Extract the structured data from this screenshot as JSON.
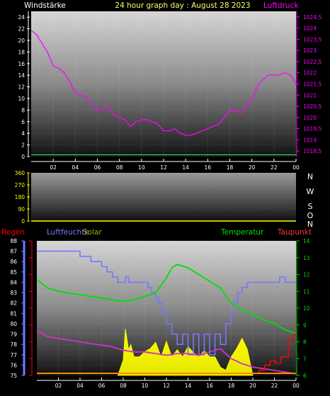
{
  "header": {
    "left": "Windstärke",
    "center": "24 hour graph day : August 28 2023",
    "right": "Luftdruck"
  },
  "compass": [
    "N",
    "W",
    "S",
    "O",
    "N"
  ],
  "labels": {
    "regen": "Regen",
    "luftfeuchte": "Luftfeuchte",
    "solar": "Solar",
    "temperatur": "Temperatur",
    "taupunkt": "Taupunkt"
  },
  "colors": {
    "wind": "#33cc66",
    "pressure": "#ff00ff",
    "humidity": "#7777ff",
    "solar": "#ffff00",
    "temperature": "#00e000",
    "dewpoint": "#cc33cc",
    "rain": "#ff0000",
    "tickLeft": "#ffffff",
    "tickRight": "#ff00ff"
  },
  "chart_data": [
    {
      "type": "line",
      "title": "24 hour graph day : August 28 2023",
      "x_ticks": [
        "02",
        "04",
        "06",
        "08",
        "10",
        "12",
        "14",
        "16",
        "18",
        "20",
        "22",
        "00"
      ],
      "y_left_label": "Windstärke",
      "y_left_ticks": [
        0,
        2,
        4,
        6,
        8,
        10,
        12,
        14,
        16,
        18,
        20,
        22,
        24
      ],
      "y_left_range": [
        0,
        25
      ],
      "y_right_label": "Luftdruck",
      "y_right_ticks": [
        "1018,5",
        "1019",
        "1019,5",
        "1020",
        "1020,5",
        "1021",
        "1021,5",
        "1022",
        "1022,5",
        "1023",
        "1023,5",
        "1024",
        "1024,5"
      ],
      "y_right_range": [
        1018.25,
        1024.75
      ],
      "series": [
        {
          "name": "Windstärke",
          "axis": "left",
          "x": [
            0,
            24
          ],
          "values": [
            0.3,
            0.3
          ]
        },
        {
          "name": "Luftdruck",
          "axis": "right",
          "x": [
            0,
            0.5,
            1,
            1.5,
            2,
            2.5,
            3,
            3.5,
            4,
            4.5,
            5,
            5.5,
            6,
            6.5,
            7,
            7.5,
            8,
            8.5,
            9,
            9.5,
            10,
            10.5,
            11,
            11.5,
            12,
            12.5,
            13,
            13.5,
            14,
            14.5,
            15,
            15.5,
            16,
            16.5,
            17,
            17.5,
            18,
            18.5,
            19,
            19.5,
            20,
            20.5,
            21,
            21.5,
            22,
            22.5,
            23,
            23.5,
            24
          ],
          "values": [
            1023.9,
            1023.7,
            1023.3,
            1022.9,
            1022.3,
            1022.2,
            1022.0,
            1021.6,
            1021.1,
            1021.0,
            1020.9,
            1020.6,
            1020.3,
            1020.4,
            1020.5,
            1020.1,
            1020.0,
            1019.9,
            1019.6,
            1019.8,
            1019.9,
            1019.9,
            1019.8,
            1019.7,
            1019.4,
            1019.4,
            1019.5,
            1019.3,
            1019.2,
            1019.2,
            1019.3,
            1019.4,
            1019.5,
            1019.6,
            1019.7,
            1020.0,
            1020.3,
            1020.3,
            1020.2,
            1020.5,
            1020.8,
            1021.4,
            1021.7,
            1021.9,
            1021.9,
            1021.9,
            1022.0,
            1021.9,
            1021.5
          ]
        }
      ]
    },
    {
      "type": "line",
      "y_left_label": "",
      "y_left_ticks": [
        0,
        90,
        180,
        270,
        360
      ],
      "y_left_range": [
        0,
        360
      ],
      "series": [
        {
          "name": "",
          "x": [
            0,
            24
          ],
          "values": [
            0,
            0
          ]
        }
      ]
    },
    {
      "type": "line",
      "x_ticks": [
        "02",
        "04",
        "06",
        "08",
        "10",
        "12",
        "14",
        "16",
        "18",
        "20",
        "22",
        "00"
      ],
      "y_left_ticks": [
        75,
        76,
        77,
        78,
        79,
        80,
        81,
        82,
        83,
        84,
        85,
        86,
        87,
        88
      ],
      "y_left_range": [
        75,
        88
      ],
      "y_right_ticks": [
        6,
        7,
        8,
        9,
        10,
        11,
        12,
        13,
        14
      ],
      "y_right_range": [
        6,
        14
      ],
      "series": [
        {
          "name": "Luftfeuchte",
          "axis": "left",
          "x": [
            0,
            3,
            4,
            5,
            6,
            6.5,
            7,
            7.5,
            8,
            8.2,
            8.5,
            9,
            10,
            10.3,
            10.6,
            11,
            11.3,
            11.6,
            12,
            12.5,
            13,
            13.5,
            14,
            14.5,
            15,
            15.5,
            16,
            16.5,
            17,
            17.5,
            18,
            18.3,
            18.6,
            19,
            19.5,
            20,
            20.5,
            21,
            21.5,
            22,
            22.5,
            23,
            23.5,
            24
          ],
          "values": [
            87,
            87,
            86.5,
            86,
            85.5,
            85,
            84.5,
            84,
            84,
            84.5,
            84,
            84,
            84,
            83.5,
            83,
            82.5,
            82,
            81,
            80,
            79,
            78,
            79,
            77,
            79,
            77,
            79,
            77,
            79,
            78,
            80,
            81,
            82,
            83,
            83.5,
            84,
            84,
            84,
            84,
            84,
            84,
            84.5,
            84,
            84,
            84
          ]
        },
        {
          "name": "Solar",
          "axis": "left",
          "x": [
            7.5,
            8,
            8.2,
            8.5,
            8.7,
            9,
            9.5,
            10,
            10.5,
            11,
            11.5,
            12,
            12.5,
            13,
            13.5,
            14,
            14.5,
            15,
            15.5,
            16,
            16.5,
            17,
            17.5,
            18,
            18.5,
            19,
            19.5,
            20
          ],
          "values": [
            75,
            76.5,
            79.5,
            77.5,
            78,
            76.8,
            76.8,
            77.3,
            77.6,
            78.2,
            76.8,
            78.3,
            76.8,
            77.5,
            76.8,
            77.8,
            77.2,
            76.8,
            77.4,
            76.8,
            76.8,
            75.8,
            75.5,
            76.8,
            77.6,
            78.6,
            77.5,
            75
          ]
        },
        {
          "name": "Temperatur",
          "axis": "right",
          "x": [
            0,
            1,
            2,
            3,
            4,
            5,
            6,
            7,
            8,
            9,
            10,
            11,
            12,
            12.5,
            13,
            14,
            15,
            16,
            17,
            18,
            19,
            20,
            21,
            22,
            23,
            24
          ],
          "values": [
            11.7,
            11.2,
            11.0,
            10.9,
            10.8,
            10.7,
            10.6,
            10.5,
            10.4,
            10.5,
            10.7,
            10.9,
            11.8,
            12.4,
            12.6,
            12.4,
            12.0,
            11.6,
            11.2,
            10.3,
            9.9,
            9.6,
            9.3,
            9.1,
            8.7,
            8.5
          ]
        },
        {
          "name": "Taupunkt",
          "axis": "right",
          "x": [
            0,
            1,
            2,
            3,
            4,
            5,
            6,
            7,
            8,
            9,
            10,
            11,
            12,
            13,
            14,
            15,
            16,
            17,
            18,
            19,
            20,
            21,
            22,
            23,
            24
          ],
          "values": [
            8.7,
            8.3,
            8.2,
            8.1,
            8.0,
            7.9,
            7.8,
            7.7,
            7.5,
            7.4,
            7.4,
            7.3,
            7.2,
            7.3,
            7.3,
            7.2,
            7.4,
            7.6,
            7.0,
            6.7,
            6.5,
            6.4,
            6.3,
            6.2,
            6.1
          ]
        },
        {
          "name": "Regen",
          "axis": "left",
          "x": [
            0,
            20.5,
            20.6,
            21.0,
            21.1,
            21.5,
            21.6,
            22.0,
            22.1,
            22.5,
            22.6,
            23.2,
            23.3,
            23.7,
            23.8,
            24
          ],
          "values": [
            75.2,
            75.2,
            75.5,
            75.5,
            76.0,
            76.0,
            76.4,
            76.4,
            76.2,
            76.2,
            76.8,
            76.8,
            78.5,
            78.5,
            79.0,
            79.0
          ]
        }
      ]
    }
  ]
}
